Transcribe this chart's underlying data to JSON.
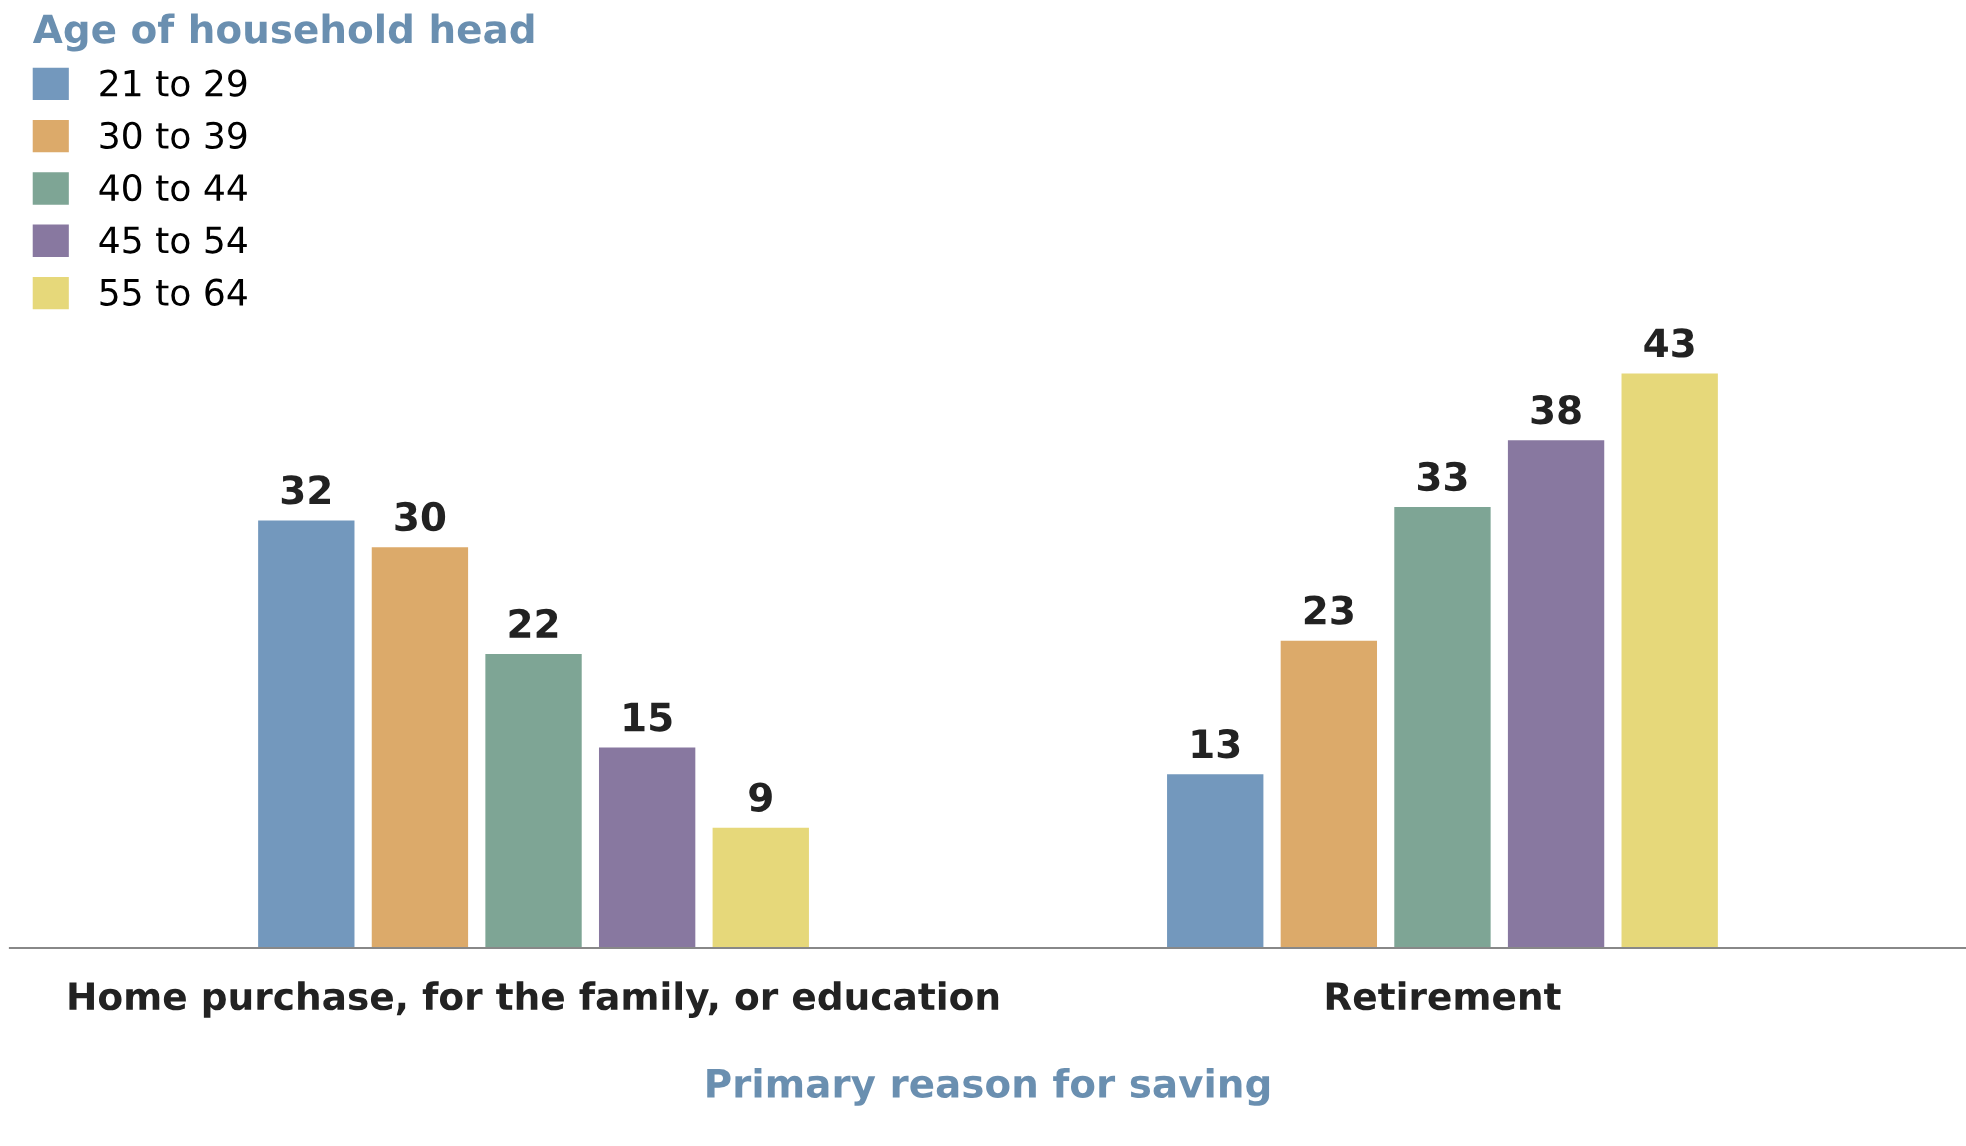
{
  "chart_data": {
    "type": "bar",
    "xlabel": "Primary reason for saving",
    "legend_title": "Age of household head",
    "categories": [
      "Home purchase, for the family, or education",
      "Retirement"
    ],
    "series": [
      {
        "name": "21 to 29",
        "color": "#7398bd",
        "values": [
          32,
          13
        ]
      },
      {
        "name": "30 to 39",
        "color": "#dcaa6a",
        "values": [
          30,
          23
        ]
      },
      {
        "name": "40 to 44",
        "color": "#7ea595",
        "values": [
          22,
          33
        ]
      },
      {
        "name": "45 to 54",
        "color": "#8878a0",
        "values": [
          15,
          38
        ]
      },
      {
        "name": "55 to 64",
        "color": "#e6d87a",
        "values": [
          9,
          43
        ]
      }
    ],
    "data_labels": true,
    "legend": "top left",
    "grid": false
  }
}
